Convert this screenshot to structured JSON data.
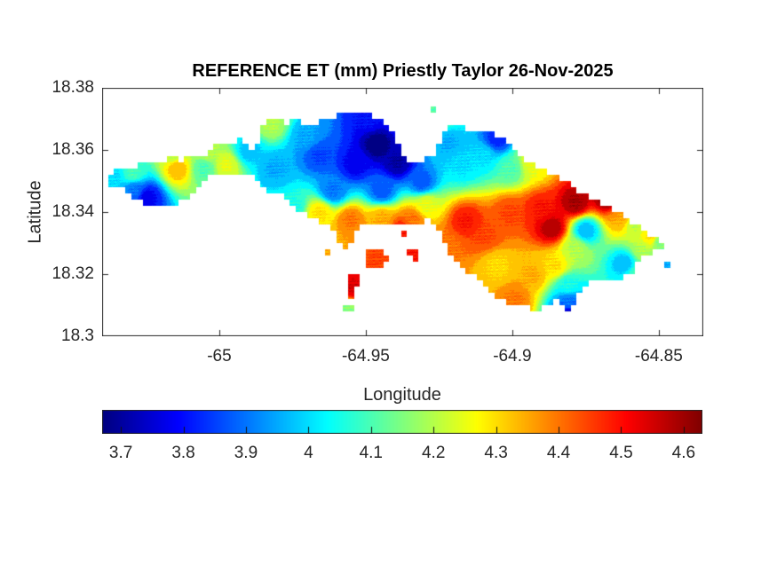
{
  "figure": {
    "background": "#ffffff",
    "axis_color": "#262626",
    "title_color": "#000000"
  },
  "chart_data": {
    "type": "heatmap",
    "subtype": "filled-contour-map",
    "title": "REFERENCE ET (mm) Priestly Taylor 26-Nov-2025",
    "variable": "REFERENCE ET",
    "units": "mm",
    "method": "Priestly Taylor",
    "date": "26-Nov-2025",
    "xlabel": "Longitude",
    "ylabel": "Latitude",
    "xlim": [
      -65.04,
      -64.8348
    ],
    "ylim": [
      18.3,
      18.38
    ],
    "xticks": {
      "values": [
        -65,
        -64.95,
        -64.9,
        -64.85
      ],
      "labels": [
        "-65",
        "-64.95",
        "-64.9",
        "-64.85"
      ]
    },
    "yticks": {
      "values": [
        18.38,
        18.36,
        18.34,
        18.32,
        18.3
      ],
      "labels": [
        "18.38",
        "18.36",
        "18.34",
        "18.32",
        "18.3"
      ]
    },
    "grid": false,
    "colormap": "jet",
    "colorbar": {
      "orientation": "horizontal",
      "min": 3.67,
      "max": 4.63,
      "tick_values": [
        3.7,
        3.8,
        3.9,
        4,
        4.1,
        4.2,
        4.3,
        4.4,
        4.5,
        4.6
      ],
      "tick_labels": [
        "3.7",
        "3.8",
        "3.9",
        "4",
        "4.1",
        "4.2",
        "4.3",
        "4.4",
        "4.5",
        "4.6"
      ]
    },
    "contour_interval": 0.05,
    "grid_resolution_deg": 0.002,
    "island_outline": [
      [
        -65.0391,
        18.35
      ],
      [
        -65.0367,
        18.3529
      ],
      [
        -65.033,
        18.3549
      ],
      [
        -65.0294,
        18.354
      ],
      [
        -65.0264,
        18.3563
      ],
      [
        -65.0218,
        18.3554
      ],
      [
        -65.0173,
        18.3577
      ],
      [
        -65.0127,
        18.3566
      ],
      [
        -65.0088,
        18.3589
      ],
      [
        -65.0052,
        18.358
      ],
      [
        -65.0027,
        18.3597
      ],
      [
        -65.0021,
        18.3617
      ],
      [
        -64.9985,
        18.3631
      ],
      [
        -64.9955,
        18.3623
      ],
      [
        -64.993,
        18.364
      ],
      [
        -64.9906,
        18.3626
      ],
      [
        -64.9891,
        18.3609
      ],
      [
        -64.987,
        18.3626
      ],
      [
        -64.9861,
        18.3654
      ],
      [
        -64.9845,
        18.3683
      ],
      [
        -64.9815,
        18.37
      ],
      [
        -64.9773,
        18.3686
      ],
      [
        -64.9733,
        18.3694
      ],
      [
        -64.9694,
        18.368
      ],
      [
        -64.9664,
        18.3689
      ],
      [
        -64.9633,
        18.37
      ],
      [
        -64.9597,
        18.3709
      ],
      [
        -64.9561,
        18.3717
      ],
      [
        -64.9521,
        18.3723
      ],
      [
        -64.9491,
        18.3717
      ],
      [
        -64.947,
        18.3703
      ],
      [
        -64.9445,
        18.3689
      ],
      [
        -64.9421,
        18.3671
      ],
      [
        -64.9403,
        18.3649
      ],
      [
        -64.9391,
        18.362
      ],
      [
        -64.9379,
        18.3591
      ],
      [
        -64.9364,
        18.3571
      ],
      [
        -64.9339,
        18.3563
      ],
      [
        -64.9309,
        18.3566
      ],
      [
        -64.9282,
        18.3577
      ],
      [
        -64.9258,
        18.3597
      ],
      [
        -64.9242,
        18.3626
      ],
      [
        -64.9233,
        18.3654
      ],
      [
        -64.9218,
        18.3671
      ],
      [
        -64.9197,
        18.3683
      ],
      [
        -64.9173,
        18.3671
      ],
      [
        -64.9142,
        18.3663
      ],
      [
        -64.9109,
        18.3666
      ],
      [
        -64.9079,
        18.3663
      ],
      [
        -64.9058,
        18.3651
      ],
      [
        -64.9033,
        18.3634
      ],
      [
        -64.9009,
        18.3614
      ],
      [
        -64.8985,
        18.3591
      ],
      [
        -64.8955,
        18.3569
      ],
      [
        -64.8924,
        18.3551
      ],
      [
        -64.8894,
        18.3537
      ],
      [
        -64.8864,
        18.3526
      ],
      [
        -64.8833,
        18.3511
      ],
      [
        -64.8803,
        18.3491
      ],
      [
        -64.8773,
        18.3469
      ],
      [
        -64.8742,
        18.3449
      ],
      [
        -64.8712,
        18.3434
      ],
      [
        -64.8682,
        18.3423
      ],
      [
        -64.8658,
        18.3411
      ],
      [
        -64.8633,
        18.3397
      ],
      [
        -64.8609,
        18.338
      ],
      [
        -64.8585,
        18.3363
      ],
      [
        -64.8561,
        18.3346
      ],
      [
        -64.8536,
        18.3331
      ],
      [
        -64.8512,
        18.3317
      ],
      [
        -64.8488,
        18.3309
      ],
      [
        -64.8465,
        18.33
      ],
      [
        -64.8488,
        18.3283
      ],
      [
        -64.8512,
        18.3269
      ],
      [
        -64.8536,
        18.326
      ],
      [
        -64.8561,
        18.3243
      ],
      [
        -64.8579,
        18.322
      ],
      [
        -64.8597,
        18.3197
      ],
      [
        -64.8621,
        18.3186
      ],
      [
        -64.8652,
        18.3183
      ],
      [
        -64.8682,
        18.3186
      ],
      [
        -64.8712,
        18.3186
      ],
      [
        -64.8739,
        18.3174
      ],
      [
        -64.8761,
        18.3151
      ],
      [
        -64.8779,
        18.3123
      ],
      [
        -64.8791,
        18.3089
      ],
      [
        -64.88,
        18.306
      ],
      [
        -64.8815,
        18.3077
      ],
      [
        -64.883,
        18.31
      ],
      [
        -64.8845,
        18.3117
      ],
      [
        -64.8864,
        18.3111
      ],
      [
        -64.8882,
        18.31
      ],
      [
        -64.8906,
        18.3089
      ],
      [
        -64.8936,
        18.3089
      ],
      [
        -64.8967,
        18.3094
      ],
      [
        -64.8997,
        18.3103
      ],
      [
        -64.9027,
        18.3114
      ],
      [
        -64.9052,
        18.3126
      ],
      [
        -64.9076,
        18.3146
      ],
      [
        -64.91,
        18.3169
      ],
      [
        -64.9124,
        18.3189
      ],
      [
        -64.9148,
        18.3203
      ],
      [
        -64.9173,
        18.322
      ],
      [
        -64.9194,
        18.3243
      ],
      [
        -64.9212,
        18.3271
      ],
      [
        -64.9227,
        18.33
      ],
      [
        -64.9242,
        18.3331
      ],
      [
        -64.9264,
        18.3354
      ],
      [
        -64.9288,
        18.3371
      ],
      [
        -64.9315,
        18.3363
      ],
      [
        -64.9342,
        18.3357
      ],
      [
        -64.9367,
        18.3366
      ],
      [
        -64.9391,
        18.3357
      ],
      [
        -64.9415,
        18.3363
      ],
      [
        -64.9439,
        18.3357
      ],
      [
        -64.9464,
        18.3363
      ],
      [
        -64.9488,
        18.3354
      ],
      [
        -64.9512,
        18.336
      ],
      [
        -64.953,
        18.3349
      ],
      [
        -64.9542,
        18.3331
      ],
      [
        -64.9548,
        18.3309
      ],
      [
        -64.9561,
        18.3289
      ],
      [
        -64.9579,
        18.3289
      ],
      [
        -64.9594,
        18.3309
      ],
      [
        -64.9606,
        18.3331
      ],
      [
        -64.9618,
        18.3351
      ],
      [
        -64.9639,
        18.3366
      ],
      [
        -64.9667,
        18.3374
      ],
      [
        -64.9694,
        18.3383
      ],
      [
        -64.9718,
        18.3394
      ],
      [
        -64.9739,
        18.3409
      ],
      [
        -64.9758,
        18.3429
      ],
      [
        -64.9776,
        18.3446
      ],
      [
        -64.98,
        18.3454
      ],
      [
        -64.9824,
        18.346
      ],
      [
        -64.9848,
        18.3469
      ],
      [
        -64.9864,
        18.3486
      ],
      [
        -64.987,
        18.3506
      ],
      [
        -64.9882,
        18.3517
      ],
      [
        -64.9912,
        18.352
      ],
      [
        -64.9948,
        18.3517
      ],
      [
        -64.9985,
        18.352
      ],
      [
        -65.0015,
        18.3514
      ],
      [
        -65.0039,
        18.3509
      ],
      [
        -65.0058,
        18.3491
      ],
      [
        -65.0076,
        18.3474
      ],
      [
        -65.0094,
        18.346
      ],
      [
        -65.0115,
        18.3443
      ],
      [
        -65.0139,
        18.3431
      ],
      [
        -65.0167,
        18.3426
      ],
      [
        -65.0197,
        18.3423
      ],
      [
        -65.0227,
        18.3423
      ],
      [
        -65.0258,
        18.3431
      ],
      [
        -65.0285,
        18.3446
      ],
      [
        -65.0309,
        18.346
      ],
      [
        -65.0336,
        18.3474
      ],
      [
        -65.0364,
        18.3486
      ]
    ],
    "islets": [
      {
        "name": "water-island",
        "points": [
          [
            -64.9497,
            18.3271
          ],
          [
            -64.9452,
            18.3277
          ],
          [
            -64.9424,
            18.3254
          ],
          [
            -64.9445,
            18.3226
          ],
          [
            -64.9482,
            18.322
          ],
          [
            -64.9503,
            18.3243
          ]
        ]
      },
      {
        "name": "red-dash-island",
        "points": [
          [
            -64.9358,
            18.3274
          ],
          [
            -64.9318,
            18.3271
          ],
          [
            -64.9315,
            18.3249
          ],
          [
            -64.9352,
            18.3251
          ]
        ]
      },
      {
        "name": "red-dot-island",
        "points": [
          [
            -64.9385,
            18.3346
          ],
          [
            -64.9364,
            18.3346
          ],
          [
            -64.9364,
            18.3329
          ],
          [
            -64.9385,
            18.3329
          ]
        ]
      },
      {
        "name": "red-strip-island",
        "points": [
          [
            -64.9564,
            18.3189
          ],
          [
            -64.953,
            18.3194
          ],
          [
            -64.9524,
            18.3163
          ],
          [
            -64.9542,
            18.314
          ],
          [
            -64.9536,
            18.312
          ],
          [
            -64.9561,
            18.3117
          ],
          [
            -64.9567,
            18.3146
          ],
          [
            -64.9555,
            18.3169
          ]
        ]
      },
      {
        "name": "green-dash-island",
        "points": [
          [
            -64.9585,
            18.3091
          ],
          [
            -64.9545,
            18.3091
          ],
          [
            -64.9545,
            18.3074
          ],
          [
            -64.9585,
            18.3074
          ]
        ]
      },
      {
        "name": "orange-dash-island",
        "points": [
          [
            -64.9639,
            18.3283
          ],
          [
            -64.9615,
            18.3283
          ],
          [
            -64.9615,
            18.3263
          ],
          [
            -64.9639,
            18.3263
          ]
        ]
      },
      {
        "name": "cyan-speck-island",
        "points": [
          [
            -64.8485,
            18.324
          ],
          [
            -64.8461,
            18.324
          ],
          [
            -64.8461,
            18.322
          ],
          [
            -64.8485,
            18.322
          ]
        ]
      },
      {
        "name": "north-speck-1",
        "points": [
          [
            -64.9312,
            18.3749
          ],
          [
            -64.9291,
            18.3749
          ],
          [
            -64.9291,
            18.3734
          ],
          [
            -64.9312,
            18.3734
          ]
        ]
      },
      {
        "name": "north-speck-2",
        "points": [
          [
            -64.9279,
            18.3731
          ],
          [
            -64.9258,
            18.3731
          ],
          [
            -64.9258,
            18.3717
          ],
          [
            -64.9279,
            18.3717
          ]
        ]
      },
      {
        "name": "north-speck-3",
        "points": [
          [
            -64.9248,
            18.3717
          ],
          [
            -64.9233,
            18.3717
          ],
          [
            -64.9233,
            18.3703
          ],
          [
            -64.9248,
            18.3703
          ]
        ]
      }
    ],
    "field_control_points": [
      [
        -65.0361,
        18.3511,
        4.0
      ],
      [
        -65.0294,
        18.3526,
        4.1
      ],
      [
        -65.0248,
        18.3449,
        3.78
      ],
      [
        -65.0288,
        18.3469,
        3.9
      ],
      [
        -65.0142,
        18.354,
        4.33
      ],
      [
        -65.0158,
        18.3589,
        4.2
      ],
      [
        -65.0052,
        18.354,
        4.1
      ],
      [
        -65.0036,
        18.3591,
        4.2
      ],
      [
        -64.9976,
        18.3551,
        4.25
      ],
      [
        -64.99,
        18.3597,
        3.98
      ],
      [
        -64.9824,
        18.3683,
        4.2
      ],
      [
        -64.9809,
        18.354,
        3.95
      ],
      [
        -64.9748,
        18.3417,
        4.05
      ],
      [
        -64.9461,
        18.3617,
        3.67
      ],
      [
        -64.9391,
        18.356,
        3.7
      ],
      [
        -64.9536,
        18.3554,
        3.78
      ],
      [
        -64.9658,
        18.3583,
        3.85
      ],
      [
        -64.9703,
        18.364,
        3.95
      ],
      [
        -64.9491,
        18.3703,
        3.8
      ],
      [
        -64.9612,
        18.3469,
        3.9
      ],
      [
        -64.9445,
        18.3469,
        3.88
      ],
      [
        -64.9309,
        18.3497,
        3.88
      ],
      [
        -64.9658,
        18.3397,
        4.3
      ],
      [
        -64.9552,
        18.3374,
        4.4
      ],
      [
        -64.9445,
        18.3377,
        4.35
      ],
      [
        -64.9339,
        18.3377,
        4.4
      ],
      [
        -64.9294,
        18.342,
        4.25
      ],
      [
        -64.9218,
        18.3626,
        3.95
      ],
      [
        -64.9173,
        18.3554,
        4.0
      ],
      [
        -64.9052,
        18.3634,
        3.83
      ],
      [
        -64.9097,
        18.3583,
        4.0
      ],
      [
        -64.9006,
        18.354,
        4.1
      ],
      [
        -64.893,
        18.3554,
        4.25
      ],
      [
        -64.8894,
        18.3597,
        4.35
      ],
      [
        -64.89,
        18.3411,
        4.5
      ],
      [
        -64.9006,
        18.3397,
        4.45
      ],
      [
        -64.8785,
        18.3431,
        4.6
      ],
      [
        -64.8673,
        18.3446,
        4.63
      ],
      [
        -64.8606,
        18.3414,
        4.5
      ],
      [
        -64.8718,
        18.3531,
        4.5
      ],
      [
        -64.8864,
        18.3349,
        4.58
      ],
      [
        -64.8749,
        18.334,
        3.97
      ],
      [
        -64.8785,
        18.3283,
        4.2
      ],
      [
        -64.8627,
        18.3383,
        4.35
      ],
      [
        -64.8582,
        18.3363,
        4.2
      ],
      [
        -64.8618,
        18.3234,
        3.97
      ],
      [
        -64.8552,
        18.3277,
        4.2
      ],
      [
        -64.8527,
        18.3317,
        4.3
      ],
      [
        -64.85,
        18.3303,
        4.15
      ],
      [
        -64.8573,
        18.3197,
        4.1
      ],
      [
        -64.9097,
        18.3326,
        4.45
      ],
      [
        -64.9158,
        18.3369,
        4.5
      ],
      [
        -64.9218,
        18.3291,
        4.4
      ],
      [
        -64.9052,
        18.3226,
        4.3
      ],
      [
        -64.893,
        18.3197,
        4.35
      ],
      [
        -64.8855,
        18.3226,
        4.3
      ],
      [
        -64.8991,
        18.3117,
        4.4
      ],
      [
        -64.8809,
        18.3163,
        4.05
      ],
      [
        -64.8806,
        18.3111,
        3.9
      ],
      [
        -64.88,
        18.3066,
        3.7
      ],
      [
        -64.9461,
        18.3249,
        4.45
      ],
      [
        -64.9336,
        18.3263,
        4.5
      ],
      [
        -64.9376,
        18.334,
        4.5
      ],
      [
        -64.9545,
        18.3157,
        4.55
      ],
      [
        -64.9564,
        18.3083,
        4.15
      ],
      [
        -64.9627,
        18.3274,
        4.35
      ],
      [
        -64.8473,
        18.3231,
        3.95
      ],
      [
        -64.9302,
        18.3741,
        4.25
      ],
      [
        -64.9269,
        18.3724,
        4.1
      ],
      [
        -64.924,
        18.371,
        4.1
      ]
    ]
  }
}
